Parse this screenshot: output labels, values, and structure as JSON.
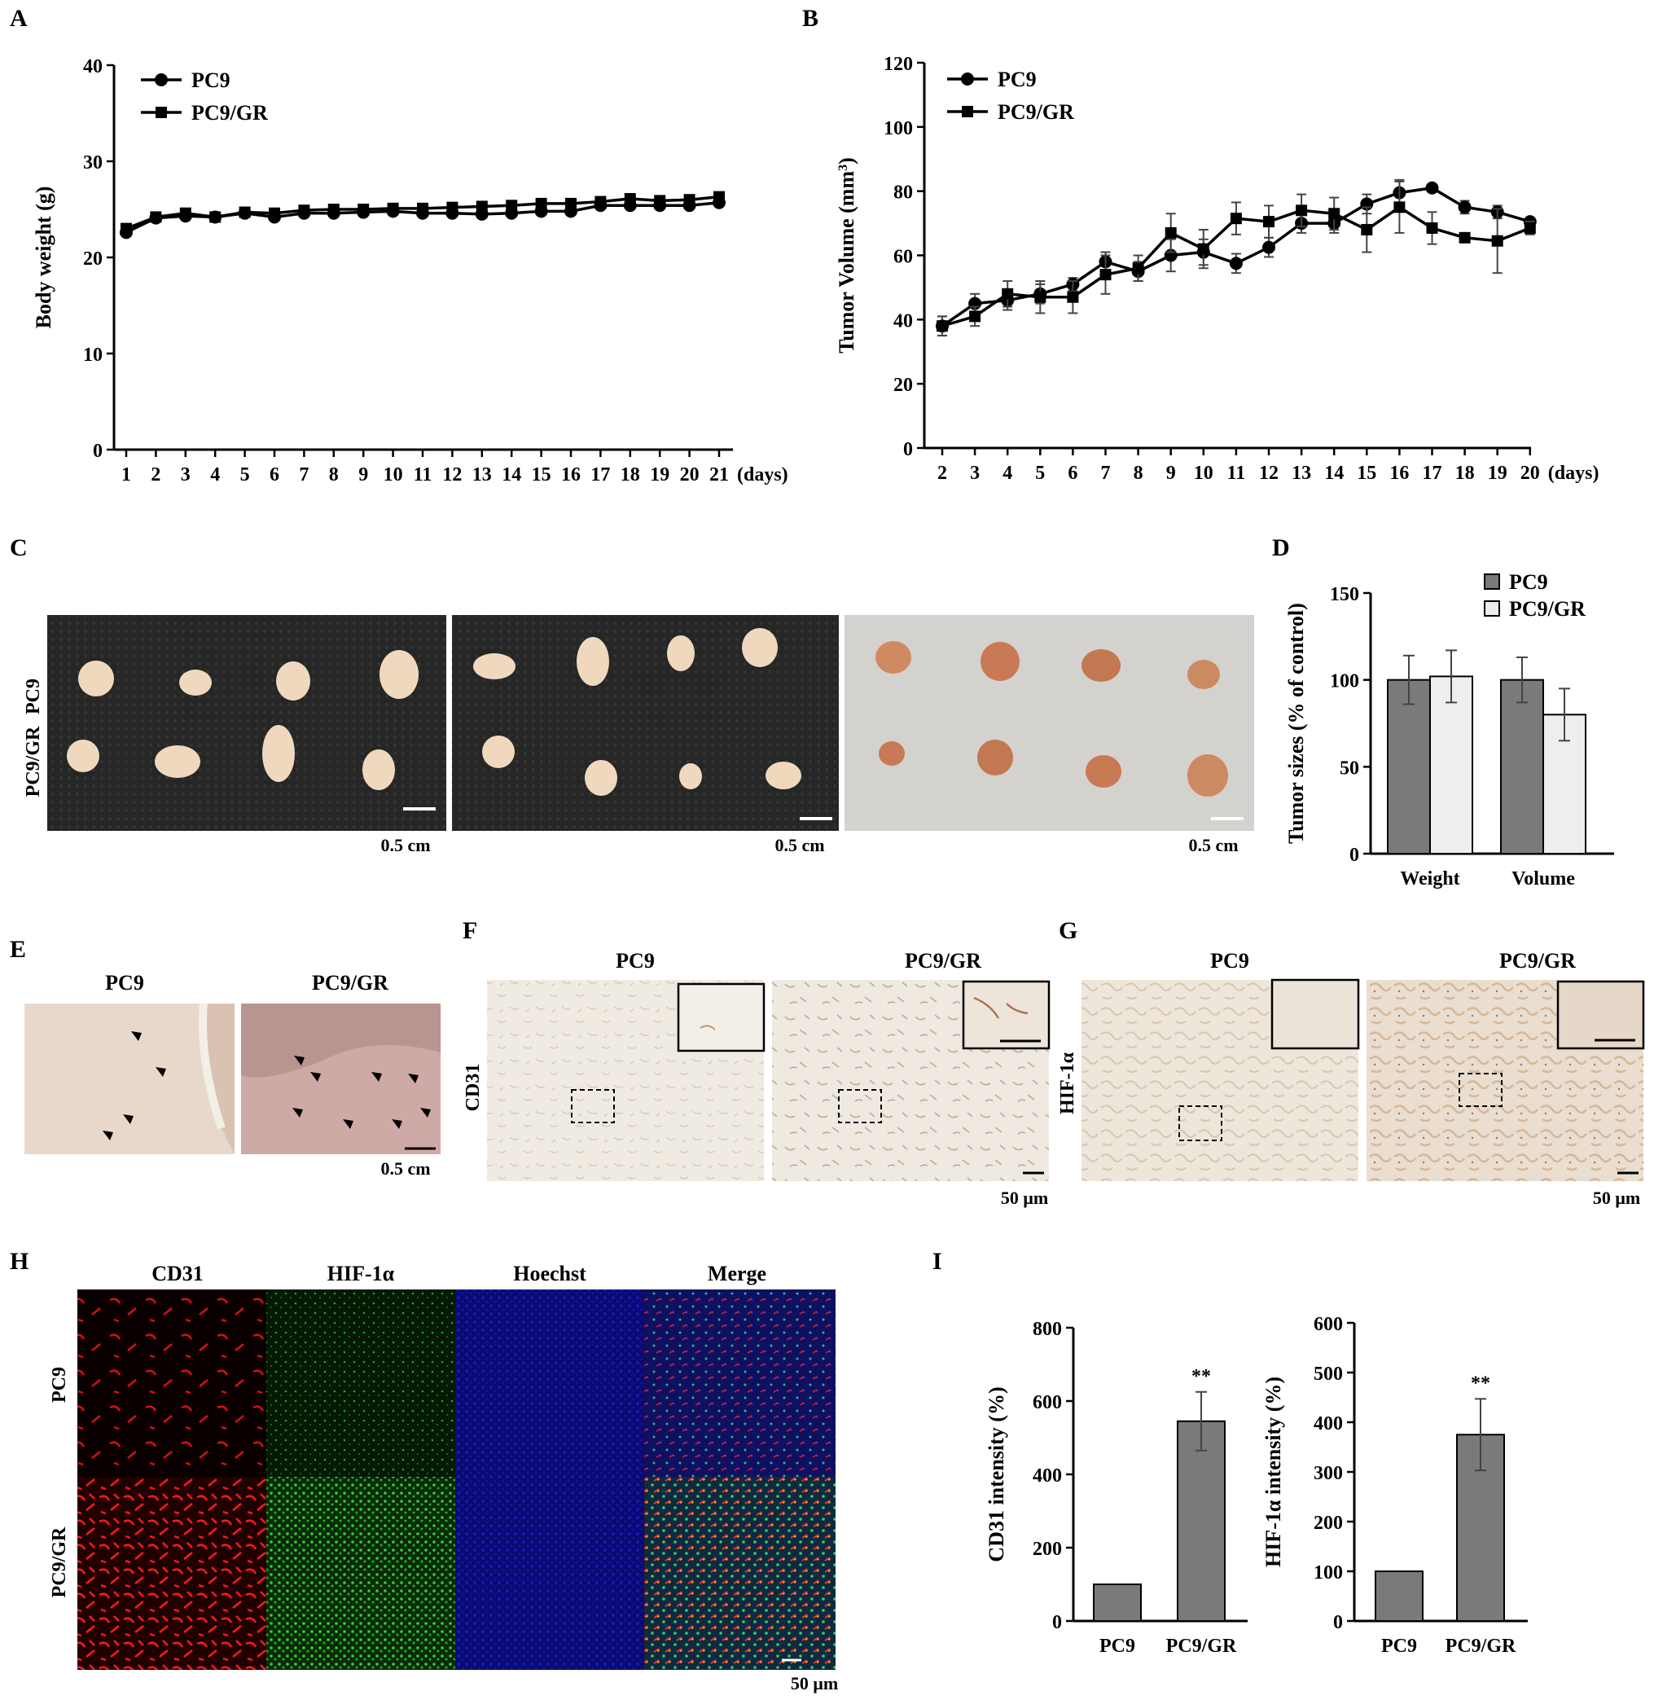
{
  "panels": {
    "A": "A",
    "B": "B",
    "C": "C",
    "D": "D",
    "E": "E",
    "F": "F",
    "G": "G",
    "H": "H",
    "I": "I"
  },
  "photos": {
    "C": {
      "row_labels": [
        "PC9",
        "PC9/GR"
      ],
      "scales": [
        "0.5 cm",
        "0.5 cm",
        "0.5 cm"
      ],
      "colors": {
        "dark_bg": "#242424",
        "light_bg": "#d4d2cf",
        "tumor": "#f0d8bf"
      }
    },
    "E": {
      "headers": [
        "PC9",
        "PC9/GR"
      ],
      "scale": "0.5 cm"
    },
    "F": {
      "headers": [
        "PC9",
        "PC9/GR"
      ],
      "row_label": "CD31",
      "scale": "50 μm"
    },
    "G": {
      "headers": [
        "PC9",
        "PC9/GR"
      ],
      "row_label": "HIF-1α",
      "scale": "50 μm"
    },
    "H": {
      "headers": [
        "CD31",
        "HIF-1α",
        "Hoechst",
        "Merge"
      ],
      "row_labels": [
        "PC9",
        "PC9/GR"
      ],
      "scale": "50 μm",
      "colors": {
        "cd31": "#e01010",
        "hif": "#20c020",
        "hoechst": "#1010d0"
      }
    }
  },
  "chart_data": [
    {
      "id": "A",
      "type": "line",
      "xlabel": "(days)",
      "ylabel": "Body weight (g)",
      "ylim": [
        0,
        40
      ],
      "yticks": [
        0,
        10,
        20,
        30,
        40
      ],
      "x": [
        1,
        2,
        3,
        4,
        5,
        6,
        7,
        8,
        9,
        10,
        11,
        12,
        13,
        14,
        15,
        16,
        17,
        18,
        19,
        20,
        21
      ],
      "legend_position": "top-left",
      "series": [
        {
          "name": "PC9",
          "marker": "circle",
          "values": [
            22.6,
            24.1,
            24.3,
            24.2,
            24.6,
            24.2,
            24.6,
            24.6,
            24.7,
            24.8,
            24.6,
            24.6,
            24.5,
            24.6,
            24.8,
            24.8,
            25.4,
            25.4,
            25.4,
            25.4,
            25.7
          ]
        },
        {
          "name": "PC9/GR",
          "marker": "square",
          "values": [
            23.0,
            24.2,
            24.6,
            24.2,
            24.7,
            24.6,
            24.9,
            25.0,
            25.0,
            25.1,
            25.1,
            25.2,
            25.3,
            25.4,
            25.6,
            25.6,
            25.8,
            26.1,
            25.9,
            26.0,
            26.3
          ]
        }
      ]
    },
    {
      "id": "B",
      "type": "line",
      "xlabel": "(days)",
      "ylabel": "Tumor Volume (mm",
      "ylabel_sup": "3",
      "ylabel_close": ")",
      "ylim": [
        0,
        120
      ],
      "yticks": [
        0,
        20,
        40,
        60,
        80,
        100,
        120
      ],
      "x": [
        2,
        3,
        4,
        5,
        6,
        7,
        8,
        9,
        10,
        11,
        12,
        13,
        14,
        15,
        16,
        17,
        18,
        19,
        20
      ],
      "legend_position": "top-left",
      "series": [
        {
          "name": "PC9",
          "marker": "circle",
          "values": [
            38,
            45,
            46,
            48,
            51,
            58,
            55,
            60,
            61,
            57.5,
            62.5,
            70,
            70,
            76,
            79.5,
            81,
            75,
            73.5,
            70.5
          ],
          "errors": [
            3,
            3,
            3,
            3,
            2,
            3,
            3,
            5,
            4,
            3,
            3,
            3,
            3,
            3,
            4,
            1,
            2,
            2,
            1
          ]
        },
        {
          "name": "PC9/GR",
          "marker": "square",
          "values": [
            38,
            41,
            48,
            47,
            47,
            54,
            56,
            67,
            62,
            71.5,
            70.5,
            74,
            73,
            68,
            75,
            68.5,
            65.5,
            64.5,
            68.5
          ],
          "errors": [
            3,
            3,
            4,
            5,
            5,
            6,
            4,
            6,
            6,
            5,
            5,
            5,
            5,
            7,
            8,
            5,
            1,
            10,
            2
          ]
        }
      ]
    },
    {
      "id": "D",
      "type": "bar",
      "ylabel": "Tumor sizes (% of control)",
      "ylim": [
        0,
        150
      ],
      "yticks": [
        0,
        50,
        100,
        150
      ],
      "categories": [
        "Weight",
        "Volume"
      ],
      "legend_position": "top-right",
      "series": [
        {
          "name": "PC9",
          "color": "#7a7a7a",
          "values": [
            100,
            100
          ],
          "errors": [
            14,
            13
          ]
        },
        {
          "name": "PC9/GR",
          "color": "#eeeeee",
          "values": [
            102,
            80
          ],
          "errors": [
            15,
            15
          ]
        }
      ]
    },
    {
      "id": "I1",
      "type": "bar",
      "ylabel": "CD31 intensity (%)",
      "ylim": [
        0,
        800
      ],
      "yticks": [
        0,
        200,
        400,
        600,
        800
      ],
      "categories": [
        "PC9",
        "PC9/GR"
      ],
      "series": [
        {
          "color": "#7a7a7a",
          "values": [
            100,
            545
          ],
          "errors": [
            0,
            80
          ]
        }
      ],
      "annotations": [
        "",
        "**"
      ]
    },
    {
      "id": "I2",
      "type": "bar",
      "ylabel": "HIF-1α intensity (%)",
      "ylim": [
        0,
        600
      ],
      "yticks": [
        0,
        100,
        200,
        300,
        400,
        500,
        600
      ],
      "categories": [
        "PC9",
        "PC9/GR"
      ],
      "series": [
        {
          "color": "#7a7a7a",
          "values": [
            100,
            375
          ],
          "errors": [
            0,
            72
          ]
        }
      ],
      "annotations": [
        "",
        "**"
      ]
    }
  ]
}
